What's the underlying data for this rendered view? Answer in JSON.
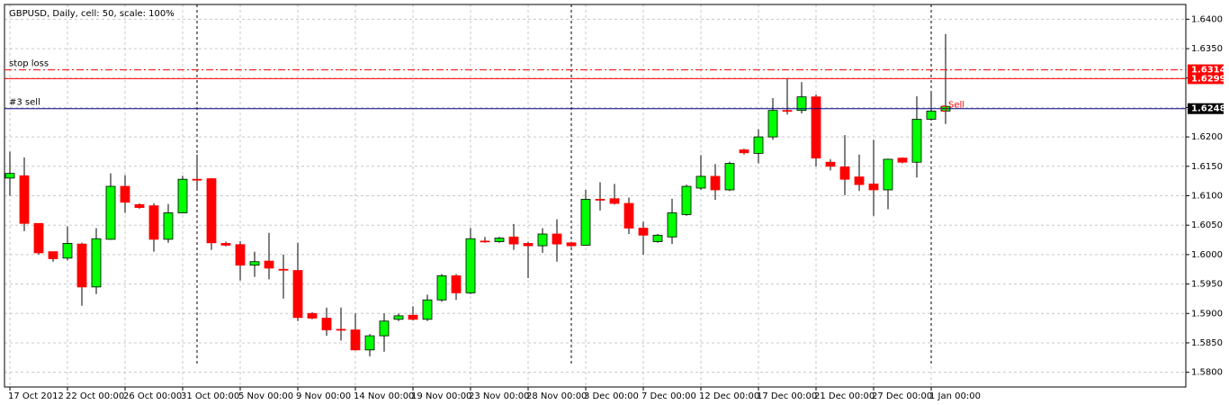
{
  "chart_data": {
    "type": "candlestick",
    "title": "GBPUSD, Daily, cell: 50, scale: 100%",
    "categories": [
      "17 Oct 2012",
      null,
      null,
      null,
      "22 Oct 00:00",
      null,
      null,
      null,
      "26 Oct 00:00",
      null,
      null,
      null,
      "31 Oct 00:00",
      null,
      null,
      null,
      "5 Nov 00:00",
      null,
      null,
      null,
      "9 Nov 00:00",
      null,
      null,
      null,
      "14 Nov 00:00",
      null,
      null,
      null,
      "19 Nov 00:00",
      null,
      null,
      null,
      "23 Nov 00:00",
      null,
      null,
      null,
      "28 Nov 00:00",
      null,
      null,
      null,
      "3 Dec 00:00",
      null,
      null,
      null,
      "7 Dec 00:00",
      null,
      null,
      null,
      "12 Dec 00:00",
      null,
      null,
      null,
      "17 Dec 00:00",
      null,
      null,
      null,
      "21 Dec 00:00",
      null,
      null,
      null,
      "27 Dec 00:00",
      null,
      null,
      null,
      "1 Jan 00:00",
      null
    ],
    "open": [
      1.613,
      1.6134,
      1.6053,
      1.6005,
      1.5994,
      1.6018,
      1.5945,
      1.6026,
      1.6116,
      1.6085,
      1.6083,
      1.6026,
      1.6071,
      1.6128,
      1.6129,
      1.6019,
      1.6017,
      1.5982,
      1.5989,
      1.5975,
      1.5973,
      1.59,
      1.5892,
      1.5873,
      1.5872,
      1.5838,
      1.5862,
      1.589,
      1.5897,
      1.589,
      1.5923,
      1.5964,
      1.5935,
      1.6023,
      1.6022,
      1.603,
      1.6019,
      1.6015,
      1.6035,
      1.602,
      1.6016,
      1.6094,
      1.6095,
      1.6087,
      1.6045,
      1.6022,
      1.603,
      1.6068,
      1.6113,
      1.6133,
      1.611,
      1.6178,
      1.6172,
      1.62,
      1.6245,
      1.6245,
      1.6268,
      1.6157,
      1.6149,
      1.6132,
      1.612,
      1.611,
      1.6164,
      1.6157,
      1.623,
      1.6244
    ],
    "high": [
      1.6175,
      1.6165,
      1.6053,
      1.6005,
      1.6048,
      1.602,
      1.6045,
      1.6138,
      1.6135,
      1.6087,
      1.6087,
      1.6086,
      1.6134,
      1.617,
      1.613,
      1.6022,
      1.6023,
      1.6005,
      1.6037,
      1.6,
      1.602,
      1.5902,
      1.591,
      1.591,
      1.59,
      1.5865,
      1.59,
      1.59,
      1.5912,
      1.5932,
      1.5967,
      1.5967,
      1.6045,
      1.603,
      1.603,
      1.6052,
      1.6022,
      1.6045,
      1.606,
      1.6022,
      1.611,
      1.6123,
      1.612,
      1.6097,
      1.6056,
      1.6035,
      1.6095,
      1.6119,
      1.6169,
      1.6154,
      1.6158,
      1.618,
      1.6213,
      1.6266,
      1.63,
      1.6293,
      1.6272,
      1.6162,
      1.6203,
      1.617,
      1.6195,
      1.6163,
      1.6165,
      1.6269,
      1.6278,
      1.6375
    ],
    "low": [
      1.61,
      1.604,
      1.6,
      1.5988,
      1.599,
      1.5913,
      1.5933,
      1.6025,
      1.6071,
      1.6078,
      1.6005,
      1.602,
      1.607,
      1.611,
      1.6008,
      1.6014,
      1.5956,
      1.5962,
      1.5958,
      1.5925,
      1.5887,
      1.589,
      1.5862,
      1.5854,
      1.5837,
      1.5827,
      1.5835,
      1.5887,
      1.5888,
      1.5887,
      1.592,
      1.5923,
      1.5933,
      1.602,
      1.602,
      1.6008,
      1.596,
      1.6003,
      1.5988,
      1.6013,
      1.6015,
      1.6075,
      1.6085,
      1.6035,
      1.6,
      1.602,
      1.6018,
      1.6066,
      1.611,
      1.6093,
      1.6108,
      1.617,
      1.6155,
      1.6195,
      1.6238,
      1.624,
      1.615,
      1.6143,
      1.6101,
      1.6108,
      1.6066,
      1.6077,
      1.6155,
      1.6131,
      1.6228,
      1.6222
    ],
    "close": [
      1.6138,
      1.6053,
      1.6003,
      1.5993,
      1.6019,
      1.5945,
      1.6027,
      1.6116,
      1.6089,
      1.608,
      1.6026,
      1.6071,
      1.6128,
      1.6127,
      1.602,
      1.6016,
      1.5982,
      1.5988,
      1.5977,
      1.5974,
      1.5893,
      1.5892,
      1.5872,
      1.5872,
      1.5838,
      1.5862,
      1.5887,
      1.5896,
      1.589,
      1.5923,
      1.5964,
      1.5935,
      1.6027,
      1.6022,
      1.6028,
      1.6018,
      1.6015,
      1.6035,
      1.6018,
      1.6015,
      1.6094,
      1.6093,
      1.6087,
      1.6045,
      1.6033,
      1.6033,
      1.6071,
      1.6116,
      1.6133,
      1.611,
      1.6155,
      1.6173,
      1.62,
      1.6245,
      1.6244,
      1.6268,
      1.6164,
      1.615,
      1.6128,
      1.6119,
      1.611,
      1.6162,
      1.6157,
      1.623,
      1.6244,
      1.6252
    ],
    "up_color": "#00ff00",
    "down_color": "#ff0000",
    "ylim": [
      1.5775,
      1.6425
    ],
    "yticks": [
      {
        "value": 1.58,
        "label": "1.5800"
      },
      {
        "value": 1.585,
        "label": "1.5850"
      },
      {
        "value": 1.59,
        "label": "1.5900"
      },
      {
        "value": 1.595,
        "label": "1.5950"
      },
      {
        "value": 1.6,
        "label": "1.6000"
      },
      {
        "value": 1.605,
        "label": "1.6050"
      },
      {
        "value": 1.61,
        "label": "1.6100"
      },
      {
        "value": 1.615,
        "label": "1.6150"
      },
      {
        "value": 1.62,
        "label": "1.6200"
      },
      {
        "value": 1.625,
        "label": "1.6250"
      },
      {
        "value": 1.63,
        "label": "1.6300"
      },
      {
        "value": 1.635,
        "label": "1.6350"
      },
      {
        "value": 1.64,
        "label": "1.6400"
      }
    ],
    "grid": true,
    "levels": [
      {
        "name": "stop loss",
        "value": 1.6314,
        "label": "1.6314",
        "color": "#ff0000",
        "dashed": true
      },
      {
        "value": 1.6299,
        "label": "1.6299",
        "color": "#ff0000",
        "dashed": false
      },
      {
        "name": "#3 sell",
        "value": 1.6248,
        "label": "1.6248",
        "color": "#000080",
        "dashed": false
      }
    ],
    "annotation": "Sell"
  }
}
